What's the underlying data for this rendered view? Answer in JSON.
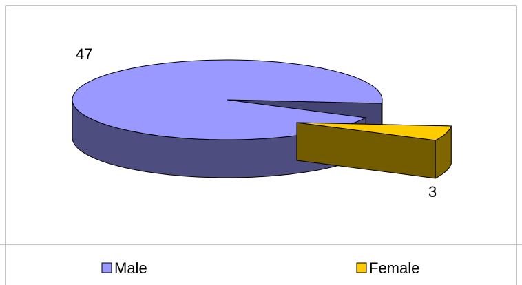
{
  "chart_data": {
    "type": "pie",
    "categories": [
      "Male",
      "Female"
    ],
    "values": [
      47,
      3
    ],
    "colors": [
      "#9999ff",
      "#ffcc00"
    ],
    "legend": "bottom"
  }
}
